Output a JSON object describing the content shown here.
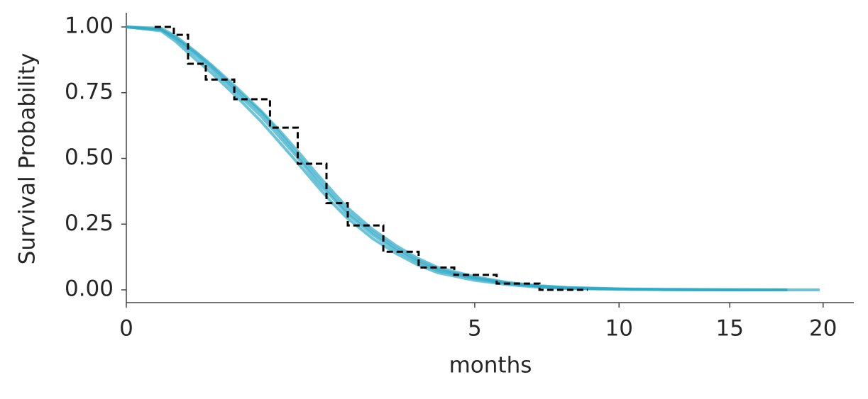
{
  "chart_data": {
    "type": "line",
    "xlabel": "months",
    "ylabel": "Survival Probability",
    "xscale": "sqrt",
    "xlim": [
      0,
      21.8
    ],
    "ylim": [
      -0.0485,
      1.054
    ],
    "xticks": [
      0,
      5,
      10,
      15,
      20
    ],
    "yticks": [
      {
        "value": 0,
        "label": "0.00"
      },
      {
        "value": 0.25,
        "label": "0.25"
      },
      {
        "value": 0.5,
        "label": "0.50"
      },
      {
        "value": 0.75,
        "label": "0.75"
      },
      {
        "value": 1,
        "label": "1.00"
      }
    ],
    "series": [
      {
        "color": "#2fa9c6",
        "x": [
          0,
          0.05,
          0.1,
          0.2,
          0.3,
          0.5,
          0.75,
          1,
          1.25,
          1.5,
          1.75,
          2,
          2.5,
          3,
          3.5,
          4,
          5,
          6,
          7,
          8,
          10,
          12,
          15,
          18,
          19.8
        ],
        "values": [
          1,
          0.99,
          0.955,
          0.89,
          0.84,
          0.75,
          0.66,
          0.57,
          0.49,
          0.41,
          0.35,
          0.29,
          0.21,
          0.15,
          0.105,
          0.073,
          0.043,
          0.024,
          0.013,
          0.007,
          0.003,
          0.001,
          0,
          0,
          0
        ]
      },
      {
        "color": "#2fa9c6",
        "x": [
          0,
          0.05,
          0.1,
          0.2,
          0.3,
          0.5,
          0.75,
          1,
          1.25,
          1.5,
          1.75,
          2,
          2.5,
          3,
          3.5,
          4,
          5,
          6,
          7,
          8,
          10,
          12,
          15,
          18,
          19.8
        ],
        "values": [
          1,
          0.995,
          0.965,
          0.905,
          0.855,
          0.77,
          0.68,
          0.595,
          0.515,
          0.44,
          0.375,
          0.315,
          0.23,
          0.168,
          0.12,
          0.085,
          0.05,
          0.028,
          0.016,
          0.009,
          0.004,
          0.002,
          0.001,
          0,
          null
        ]
      },
      {
        "color": "#2fa9c6",
        "x": [
          0,
          0.05,
          0.1,
          0.2,
          0.3,
          0.5,
          0.75,
          1,
          1.25,
          1.5,
          1.75,
          2,
          2.5,
          3,
          3.5,
          4,
          5,
          6,
          7,
          8,
          10,
          12,
          15,
          18,
          19.8
        ],
        "values": [
          1,
          0.985,
          0.945,
          0.875,
          0.825,
          0.735,
          0.64,
          0.55,
          0.47,
          0.395,
          0.33,
          0.275,
          0.195,
          0.138,
          0.095,
          0.065,
          0.036,
          0.02,
          0.01,
          0.005,
          0.002,
          0.001,
          0,
          0,
          null
        ]
      },
      {
        "color": "#2fa9c6",
        "x": [
          0,
          0.05,
          0.1,
          0.2,
          0.3,
          0.5,
          0.75,
          1,
          1.25,
          1.5,
          1.75,
          2,
          2.5,
          3,
          3.5,
          4,
          5,
          6,
          7,
          8,
          10,
          12,
          15,
          18,
          19.8
        ],
        "values": [
          1,
          0.99,
          0.96,
          0.9,
          0.85,
          0.76,
          0.675,
          0.585,
          0.5,
          0.425,
          0.36,
          0.3,
          0.22,
          0.158,
          0.112,
          0.078,
          0.046,
          0.026,
          0.014,
          0.008,
          0.003,
          0.001,
          0,
          0,
          null
        ]
      }
    ],
    "estimate": {
      "type": "step",
      "color": "#000000",
      "x": [
        0.033,
        0.093,
        0.157,
        0.26,
        0.48,
        0.85,
        1.21,
        1.65,
        2.02,
        2.72,
        3.52,
        4.43,
        5.65,
        7.03,
        8.77
      ],
      "values": [
        1,
        0.97,
        0.86,
        0.8,
        0.725,
        0.617,
        0.48,
        0.33,
        0.245,
        0.145,
        0.085,
        0.057,
        0.024,
        0,
        0
      ]
    }
  }
}
